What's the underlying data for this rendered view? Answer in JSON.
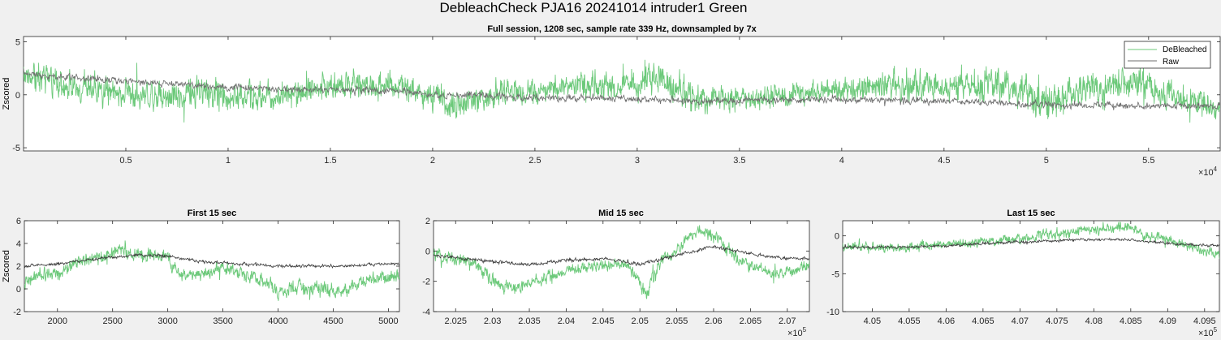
{
  "figure": {
    "title": "DebleachCheck PJA16 20241014  intruder1 Green"
  },
  "colors": {
    "debleached": "#6cc97a",
    "raw": "#6e6e6e",
    "background": "#f0f0f0",
    "axes": "#ffffff"
  },
  "chart_data": [
    {
      "type": "line",
      "title": "Full session, 1208 sec, sample rate 339 Hz, downsampled by 7x",
      "xlabel": "",
      "ylabel": "Zscored",
      "xlim": [
        0,
        58500
      ],
      "ylim": [
        -5.3,
        5.5
      ],
      "x_tick_values": [
        5000,
        10000,
        15000,
        20000,
        25000,
        30000,
        35000,
        40000,
        45000,
        50000,
        55000
      ],
      "x_tick_labels": [
        "0.5",
        "1",
        "1.5",
        "2",
        "2.5",
        "3",
        "3.5",
        "4",
        "4.5",
        "5",
        "5.5"
      ],
      "x_exponent": "4",
      "y_tick_values": [
        -5,
        0,
        5
      ],
      "y_tick_labels": [
        "-5",
        "0",
        "5"
      ],
      "grid": false,
      "legend": {
        "placement": "top-right",
        "entries": [
          "DeBleached",
          "Raw"
        ]
      },
      "series": [
        {
          "name": "DeBleached",
          "color": "#6cc97a",
          "x": [
            0,
            3000,
            6000,
            9000,
            12000,
            15000,
            18000,
            19500,
            21000,
            24000,
            27000,
            30000,
            31000,
            33000,
            36000,
            39000,
            42000,
            45000,
            48000,
            50000,
            52000,
            55000,
            58500
          ],
          "y": [
            2.0,
            0.5,
            0.0,
            0.2,
            -0.3,
            0.8,
            1.0,
            0.0,
            -1.0,
            0.3,
            0.8,
            1.2,
            1.8,
            -0.5,
            -0.2,
            0.2,
            1.0,
            0.8,
            1.0,
            -1.0,
            0.8,
            0.8,
            -1.5
          ],
          "noise": [
            1.4,
            1.5,
            1.5,
            1.5,
            1.5,
            1.5,
            1.4,
            1.2,
            1.5,
            1.2,
            1.3,
            1.8,
            1.8,
            1.5,
            1.2,
            1.2,
            1.6,
            1.6,
            1.6,
            1.8,
            1.6,
            1.6,
            1.2
          ]
        },
        {
          "name": "Raw",
          "color": "#6e6e6e",
          "x": [
            0,
            3000,
            6000,
            9000,
            12000,
            15000,
            18000,
            20000,
            24000,
            27000,
            30000,
            33000,
            36000,
            39000,
            42000,
            45000,
            48000,
            51000,
            54000,
            58500
          ],
          "y": [
            2.0,
            1.5,
            1.2,
            0.8,
            0.5,
            0.5,
            0.4,
            0.0,
            -0.2,
            -0.3,
            -0.4,
            -0.6,
            -0.5,
            -0.5,
            -0.5,
            -0.6,
            -0.8,
            -1.0,
            -1.0,
            -1.0
          ],
          "noise": [
            0.35,
            0.35,
            0.35,
            0.35,
            0.35,
            0.35,
            0.35,
            0.35,
            0.35,
            0.35,
            0.35,
            0.35,
            0.35,
            0.35,
            0.35,
            0.35,
            0.35,
            0.35,
            0.35,
            0.35
          ]
        }
      ]
    },
    {
      "type": "line",
      "title": "First 15 sec",
      "xlabel": "",
      "ylabel": "Zscored",
      "xlim": [
        1700,
        5100
      ],
      "ylim": [
        -2,
        6
      ],
      "x_tick_values": [
        2000,
        2500,
        3000,
        3500,
        4000,
        4500,
        5000
      ],
      "x_tick_labels": [
        "2000",
        "2500",
        "3000",
        "3500",
        "4000",
        "4500",
        "5000"
      ],
      "x_exponent": "",
      "y_tick_values": [
        -2,
        0,
        2,
        4,
        6
      ],
      "y_tick_labels": [
        "-2",
        "0",
        "2",
        "4",
        "6"
      ],
      "grid": false,
      "series": [
        {
          "name": "DeBleached",
          "color": "#6cc97a",
          "x": [
            1700,
            1850,
            2000,
            2200,
            2400,
            2600,
            2650,
            2800,
            3000,
            3100,
            3300,
            3500,
            3700,
            3900,
            4000,
            4200,
            4400,
            4600,
            4700,
            4900,
            5100
          ],
          "y": [
            0.5,
            1.2,
            1.2,
            2.5,
            2.8,
            3.5,
            3.0,
            3.0,
            2.8,
            1.2,
            1.2,
            2.0,
            1.2,
            0.5,
            -0.3,
            0.2,
            0.0,
            -0.3,
            0.5,
            1.0,
            1.2
          ],
          "noise": [
            0.7,
            0.7,
            0.7,
            0.6,
            0.6,
            0.8,
            0.7,
            0.6,
            0.6,
            0.6,
            0.6,
            0.7,
            0.7,
            0.7,
            0.7,
            0.7,
            0.7,
            0.7,
            0.6,
            0.6,
            0.6
          ]
        },
        {
          "name": "Raw",
          "color": "#3a3a3a",
          "x": [
            1700,
            2000,
            2400,
            2700,
            3000,
            3300,
            3700,
            4000,
            4500,
            5100
          ],
          "y": [
            2.0,
            2.2,
            2.7,
            3.0,
            2.9,
            2.4,
            2.2,
            2.0,
            2.0,
            2.2
          ],
          "noise": [
            0.15,
            0.15,
            0.15,
            0.15,
            0.15,
            0.15,
            0.15,
            0.15,
            0.15,
            0.15
          ]
        }
      ]
    },
    {
      "type": "line",
      "title": "Mid 15 sec",
      "xlabel": "",
      "ylabel": "",
      "xlim": [
        202200,
        207300
      ],
      "ylim": [
        -4,
        2
      ],
      "x_tick_values": [
        202500,
        203000,
        203500,
        204000,
        204500,
        205000,
        205500,
        206000,
        206500,
        207000
      ],
      "x_tick_labels": [
        "2.025",
        "2.03",
        "2.035",
        "2.04",
        "2.045",
        "2.05",
        "2.055",
        "2.06",
        "2.065",
        "2.07"
      ],
      "x_exponent": "5",
      "y_tick_values": [
        -4,
        -2,
        0,
        2
      ],
      "y_tick_labels": [
        "-4",
        "-2",
        "0",
        "2"
      ],
      "grid": false,
      "series": [
        {
          "name": "DeBleached",
          "color": "#6cc97a",
          "x": [
            202200,
            202500,
            202800,
            203000,
            203300,
            203600,
            204000,
            204400,
            204800,
            205000,
            205100,
            205300,
            205600,
            205800,
            206000,
            206300,
            206600,
            206900,
            207300
          ],
          "y": [
            -0.3,
            -0.5,
            -1.0,
            -2.0,
            -2.5,
            -2.0,
            -1.3,
            -1.0,
            -0.8,
            -2.0,
            -2.8,
            -0.5,
            0.5,
            1.5,
            1.0,
            -0.5,
            -1.2,
            -1.5,
            -1.0
          ],
          "noise": [
            0.5,
            0.5,
            0.5,
            0.5,
            0.5,
            0.5,
            0.4,
            0.4,
            0.4,
            0.6,
            0.8,
            0.5,
            0.5,
            0.4,
            0.5,
            0.5,
            0.4,
            0.4,
            0.4
          ]
        },
        {
          "name": "Raw",
          "color": "#3a3a3a",
          "x": [
            202200,
            202600,
            203000,
            203500,
            204000,
            204500,
            205000,
            205500,
            206000,
            206500,
            207000,
            207300
          ],
          "y": [
            -0.3,
            -0.5,
            -0.7,
            -0.9,
            -0.6,
            -0.5,
            -0.9,
            -0.3,
            0.3,
            -0.2,
            -0.5,
            -0.5
          ],
          "noise": [
            0.12,
            0.12,
            0.12,
            0.12,
            0.12,
            0.12,
            0.15,
            0.12,
            0.12,
            0.12,
            0.12,
            0.12
          ]
        }
      ]
    },
    {
      "type": "line",
      "title": "Last 15 sec",
      "xlabel": "",
      "ylabel": "",
      "xlim": [
        404600,
        409700
      ],
      "ylim": [
        -10,
        2
      ],
      "x_tick_values": [
        405000,
        405500,
        406000,
        406500,
        407000,
        407500,
        408000,
        408500,
        409000,
        409500
      ],
      "x_tick_labels": [
        "4.05",
        "4.055",
        "4.06",
        "4.065",
        "4.07",
        "4.075",
        "4.08",
        "4.085",
        "4.09",
        "4.095"
      ],
      "x_exponent": "5",
      "y_tick_values": [
        -10,
        -5,
        0
      ],
      "y_tick_labels": [
        "-10",
        "-5",
        "0"
      ],
      "grid": false,
      "series": [
        {
          "name": "DeBleached",
          "color": "#6cc97a",
          "x": [
            404600,
            405000,
            405500,
            406000,
            406500,
            407000,
            407500,
            408000,
            408500,
            408700,
            409000,
            409300,
            409700
          ],
          "y": [
            -1.5,
            -1.5,
            -1.5,
            -1.2,
            -0.8,
            -0.3,
            0.3,
            0.8,
            1.3,
            0.0,
            -0.5,
            -1.5,
            -2.5
          ],
          "noise": [
            0.7,
            0.7,
            0.7,
            0.7,
            0.7,
            0.8,
            0.8,
            0.8,
            0.7,
            0.7,
            0.7,
            0.7,
            0.7
          ]
        },
        {
          "name": "Raw",
          "color": "#3a3a3a",
          "x": [
            404600,
            405000,
            405500,
            406000,
            406500,
            407000,
            407500,
            408000,
            408500,
            409000,
            409700
          ],
          "y": [
            -1.5,
            -1.5,
            -1.5,
            -1.3,
            -1.0,
            -0.8,
            -0.6,
            -0.5,
            -0.5,
            -1.0,
            -1.3
          ],
          "noise": [
            0.2,
            0.2,
            0.2,
            0.2,
            0.2,
            0.2,
            0.2,
            0.2,
            0.2,
            0.2,
            0.2
          ]
        }
      ]
    }
  ]
}
